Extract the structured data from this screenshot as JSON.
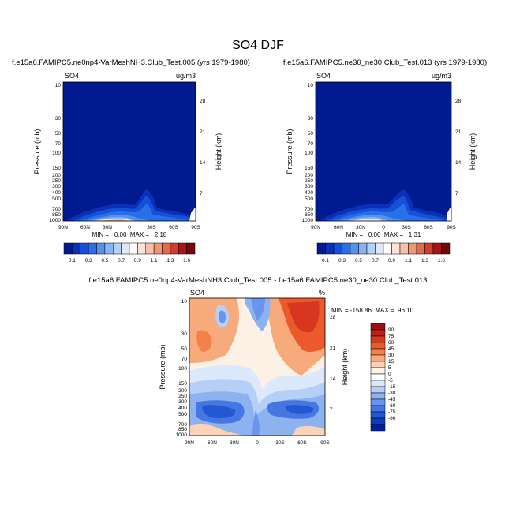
{
  "title": "SO4 DJF",
  "units_cbar_label_note": "",
  "panels": {
    "left": {
      "caption": "f.e15a6.FAMIPC5.ne0np4-VarMeshNH3.Club_Test.005 (yrs 1979-1980)",
      "var": "SO4",
      "units": "ug/m3",
      "stats": "MIN =   0.00  MAX =   2.18"
    },
    "right": {
      "caption": "f.e15a6.FAMIPC5.ne30_ne30.Club_Test.013 (yrs 1979-1980)",
      "var": "SO4",
      "units": "ug/m3",
      "stats": "MIN =   0.00  MAX =   1.31"
    },
    "diff": {
      "caption": "f.e15a6.FAMIPC5.ne0np4-VarMeshNH3.Club_Test.005 - f.e15a6.FAMIPC5.ne30_ne30.Club_Test.013",
      "var": "SO4",
      "units": "%",
      "stats": "MIN = -158.86  MAX =  96.10"
    }
  },
  "axes": {
    "ylabel": "Pressure (mb)",
    "y2label": "Height (km)"
  },
  "chart_data": [
    {
      "type": "heatmap",
      "title": "f.e15a6.FAMIPC5.ne0np4-VarMeshNH3.Club_Test.005 (yrs 1979-1980)",
      "xlabel": "",
      "ylabel": "Pressure (mb)",
      "x_ticks": [
        "90N",
        "60N",
        "30N",
        "0",
        "30S",
        "60S",
        "90S"
      ],
      "y_ticks": [
        "10",
        "30",
        "50",
        "70",
        "100",
        "150",
        "200",
        "250",
        "300",
        "400",
        "500",
        "700",
        "850",
        "1000"
      ],
      "y2_ticks": [
        "28",
        "21",
        "14",
        "7"
      ],
      "colorbar_labels": [
        "0.1",
        "0.3",
        "0.5",
        "0.7",
        "0.9",
        "1.1",
        "1.3",
        "1.6"
      ],
      "colorbar_colors": [
        "#021a8f",
        "#0a30b8",
        "#1450d8",
        "#2a6ee8",
        "#5592ef",
        "#86b4f2",
        "#b4d2f6",
        "#dde9fa",
        "#ffffff",
        "#fde3d6",
        "#f8c0a6",
        "#f19674",
        "#e56a4a",
        "#d13c2c",
        "#a9141b",
        "#6e0a0e"
      ],
      "values": "concentration mostly < 0.1 aloft; surface max 2.18 near 30N-0; plume to ~400mb near 20S"
    },
    {
      "type": "heatmap",
      "title": "f.e15a6.FAMIPC5.ne30_ne30.Club_Test.013 (yrs 1979-1980)",
      "xlabel": "",
      "ylabel": "Pressure (mb)",
      "x_ticks": [
        "90N",
        "60N",
        "30N",
        "0",
        "30S",
        "60S",
        "90S"
      ],
      "y_ticks": [
        "10",
        "30",
        "50",
        "70",
        "100",
        "150",
        "200",
        "250",
        "300",
        "400",
        "500",
        "700",
        "850",
        "1000"
      ],
      "y2_ticks": [
        "28",
        "21",
        "14",
        "7"
      ],
      "colorbar_labels": [
        "0.1",
        "0.3",
        "0.5",
        "0.7",
        "0.9",
        "1.1",
        "1.3",
        "1.6"
      ],
      "values": "concentration mostly < 0.1 aloft; surface max 1.31 near 30N; plume to ~400mb near 20S"
    },
    {
      "type": "heatmap",
      "title": "f.e15a6.FAMIPC5.ne0np4-VarMeshNH3.Club_Test.005 - f.e15a6.FAMIPC5.ne30_ne30.Club_Test.013",
      "xlabel": "",
      "ylabel": "Pressure (mb)",
      "x_ticks": [
        "90N",
        "60N",
        "30N",
        "0",
        "30S",
        "60S",
        "90S"
      ],
      "y_ticks": [
        "10",
        "30",
        "50",
        "70",
        "100",
        "150",
        "200",
        "250",
        "300",
        "400",
        "500",
        "700",
        "850",
        "1000"
      ],
      "y2_ticks": [
        "28",
        "21",
        "14",
        "7"
      ],
      "colorbar_labels": [
        "90",
        "75",
        "60",
        "45",
        "30",
        "15",
        "5",
        "0",
        "-5",
        "-15",
        "-30",
        "-45",
        "-60",
        "-75",
        "-90"
      ],
      "colorbar_colors": [
        "#9c0f12",
        "#bf1f16",
        "#d9361f",
        "#ec5a2b",
        "#f3814a",
        "#f7aa7b",
        "#fad2b7",
        "#fdf0e4",
        "#ffffff",
        "#dce8fb",
        "#b5cff6",
        "#8db2f0",
        "#6a95ea",
        "#4676e2",
        "#2457d3",
        "#0d3cc0",
        "#02209c"
      ],
      "values": "percent difference, min -158.86, max 96.10"
    }
  ]
}
